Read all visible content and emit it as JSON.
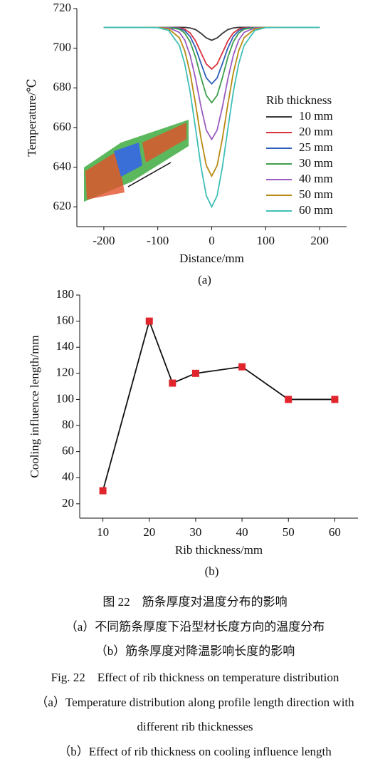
{
  "chart_data": [
    {
      "type": "line",
      "xlabel": "Distance/mm",
      "ylabel": "Temperature/℃",
      "sublabel": "(a)",
      "x": [
        -200,
        -150,
        -100,
        -80,
        -60,
        -50,
        -40,
        -30,
        -20,
        -10,
        0,
        10,
        20,
        30,
        40,
        50,
        60,
        80,
        100,
        150,
        200
      ],
      "xlim": [
        -250,
        250
      ],
      "xticks": [
        -200,
        -100,
        0,
        100,
        200
      ],
      "ylim": [
        610,
        720
      ],
      "yticks": [
        620,
        640,
        660,
        680,
        700,
        720
      ],
      "legend_title": "Rib thickness",
      "legend_position": "right",
      "series": [
        {
          "name": "10 mm",
          "color": "#3a3a3a",
          "values": [
            710.5,
            710.5,
            710.5,
            710.5,
            710.5,
            710.5,
            710.2,
            709.4,
            707.5,
            705.2,
            704.0,
            705.2,
            707.5,
            709.4,
            710.2,
            710.5,
            710.5,
            710.5,
            710.5,
            710.5,
            710.5
          ]
        },
        {
          "name": "20 mm",
          "color": "#d8323c",
          "values": [
            710.5,
            710.5,
            710.5,
            710.5,
            710.3,
            709.6,
            707.7,
            703.7,
            697.8,
            692.0,
            689.5,
            692.0,
            697.8,
            703.7,
            707.7,
            709.6,
            710.3,
            710.5,
            710.5,
            710.5,
            710.5
          ]
        },
        {
          "name": "25 mm",
          "color": "#2f5fb8",
          "values": [
            710.5,
            710.5,
            710.5,
            710.5,
            710.0,
            708.8,
            705.9,
            700.2,
            692.4,
            685.0,
            682.0,
            685.0,
            692.4,
            700.2,
            705.9,
            708.8,
            710.0,
            710.5,
            710.5,
            710.5,
            710.5
          ]
        },
        {
          "name": "30 mm",
          "color": "#3e9e4c",
          "values": [
            710.5,
            710.5,
            710.5,
            710.5,
            709.6,
            707.6,
            703.2,
            695.5,
            685.3,
            676.2,
            672.5,
            676.2,
            685.3,
            695.5,
            703.2,
            707.6,
            709.6,
            710.5,
            710.5,
            710.5,
            710.5
          ]
        },
        {
          "name": "40 mm",
          "color": "#9a5cc0",
          "values": [
            710.5,
            710.5,
            710.5,
            710.3,
            708.0,
            704.1,
            696.4,
            684.6,
            670.6,
            658.7,
            654.0,
            658.7,
            670.6,
            684.6,
            696.4,
            704.1,
            708.0,
            710.3,
            710.5,
            710.5,
            710.5
          ]
        },
        {
          "name": "50 mm",
          "color": "#b88a12",
          "values": [
            710.5,
            710.5,
            710.5,
            709.8,
            705.3,
            698.7,
            687.5,
            671.9,
            654.7,
            640.8,
            635.5,
            640.8,
            654.7,
            671.9,
            687.5,
            698.7,
            705.3,
            709.8,
            710.5,
            710.5,
            710.5
          ]
        },
        {
          "name": "60 mm",
          "color": "#3fbfb7",
          "values": [
            710.5,
            710.5,
            710.4,
            709.0,
            701.4,
            692.1,
            677.9,
            659.5,
            640.4,
            625.6,
            620.0,
            625.6,
            640.4,
            659.5,
            677.9,
            692.1,
            701.4,
            709.0,
            710.4,
            710.5,
            710.5
          ]
        }
      ]
    },
    {
      "type": "line",
      "xlabel": "Rib thickness/mm",
      "ylabel": "Cooling influence length/mm",
      "sublabel": "(b)",
      "x": [
        10,
        20,
        25,
        30,
        40,
        50,
        60
      ],
      "values": [
        30,
        160,
        112.5,
        120,
        125,
        100,
        100
      ],
      "color": "#111111",
      "marker": "square",
      "marker_color": "#e0262c",
      "xlim": [
        5,
        65
      ],
      "xticks": [
        10,
        20,
        30,
        40,
        50,
        60
      ],
      "ylim": [
        9,
        180
      ],
      "yticks": [
        20,
        40,
        60,
        80,
        100,
        120,
        140,
        160,
        180
      ]
    }
  ],
  "caption": {
    "lines": [
      "图 22　筋条厚度对温度分布的影响",
      "（a）不同筋条厚度下沿型材长度方向的温度分布",
      "（b）筋条厚度对降温影响长度的影响",
      "Fig. 22　Effect of rib thickness on temperature distribution",
      "（a）Temperature distribution along profile length direction with",
      "different rib thicknesses",
      "（b）Effect of rib thickness on cooling influence length"
    ]
  }
}
